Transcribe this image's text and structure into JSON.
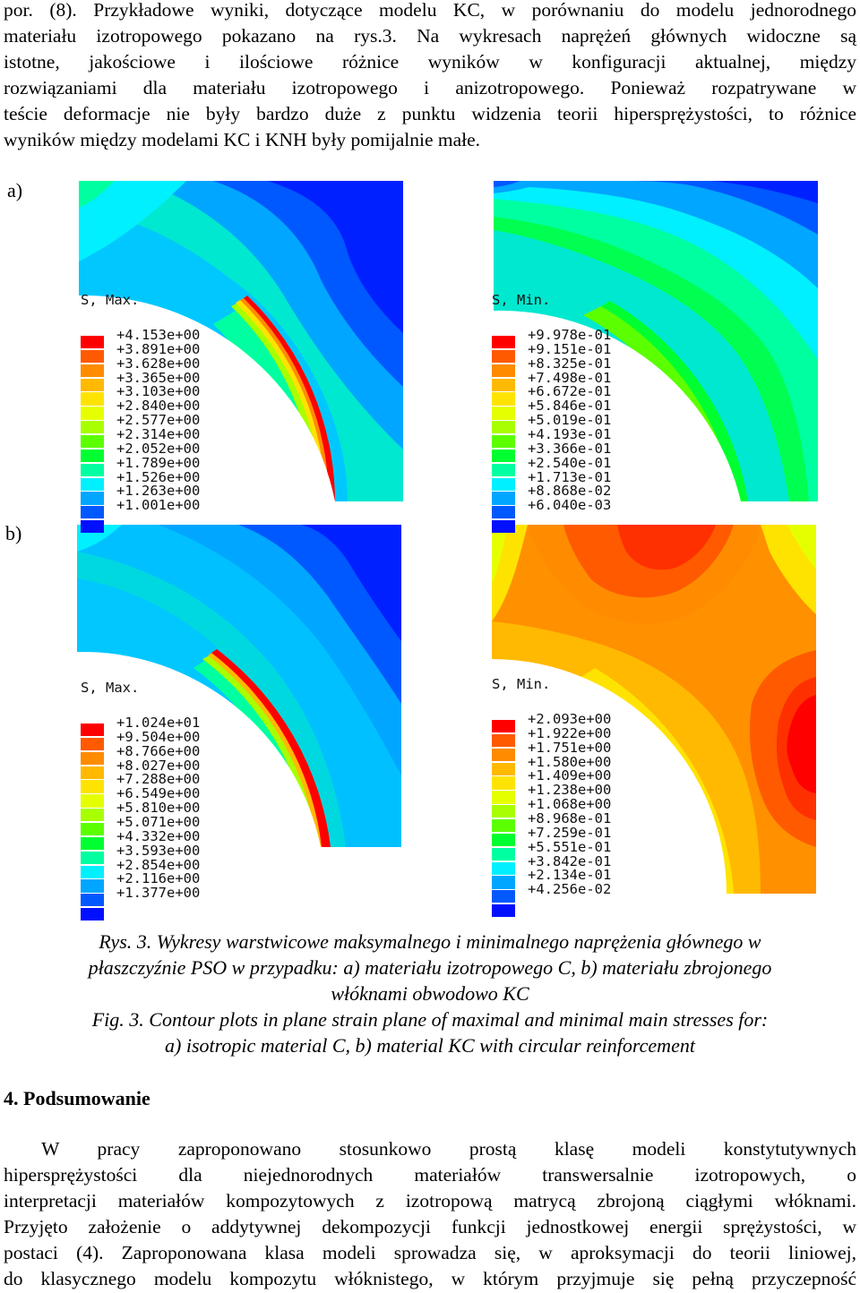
{
  "intro_lines": [
    "por. (8). Przykładowe wyniki, dotyczące modelu KC, w porównaniu do modelu jednorodnego",
    "materiału izotropowego pokazano na rys.3. Na wykresach naprężeń głównych widoczne są",
    "istotne, jakościowe i ilościowe różnice wyników w konfiguracji aktualnej, między",
    "rozwiązaniami dla materiału izotropowego i anizotropowego. Ponieważ rozpatrywane w",
    "teście deformacje nie były bardzo duże z punktu widzenia teorii hipersprężystości, to różnice",
    "wyników między modelami KC i KNH były pomijalnie małe."
  ],
  "label_a": "a)",
  "label_b": "b)",
  "palette": [
    "#ff0000",
    "#ff5a00",
    "#ff8c00",
    "#ffb900",
    "#ffe300",
    "#e6ff00",
    "#a8ff00",
    "#5cff00",
    "#00ff30",
    "#00ffa0",
    "#00f0ff",
    "#00a6ff",
    "#0058ff",
    "#0010ff"
  ],
  "plots": [
    {
      "title": "S, Max.",
      "values": [
        "+4.153e+00",
        "+3.891e+00",
        "+3.628e+00",
        "+3.365e+00",
        "+3.103e+00",
        "+2.840e+00",
        "+2.577e+00",
        "+2.314e+00",
        "+2.052e+00",
        "+1.789e+00",
        "+1.526e+00",
        "+1.263e+00",
        "+1.001e+00"
      ]
    },
    {
      "title": "S, Min.",
      "values": [
        "+9.978e-01",
        "+9.151e-01",
        "+8.325e-01",
        "+7.498e-01",
        "+6.672e-01",
        "+5.846e-01",
        "+5.019e-01",
        "+4.193e-01",
        "+3.366e-01",
        "+2.540e-01",
        "+1.713e-01",
        "+8.868e-02",
        "+6.040e-03"
      ]
    },
    {
      "title": "S, Max.",
      "values": [
        "+1.024e+01",
        "+9.504e+00",
        "+8.766e+00",
        "+8.027e+00",
        "+7.288e+00",
        "+6.549e+00",
        "+5.810e+00",
        "+5.071e+00",
        "+4.332e+00",
        "+3.593e+00",
        "+2.854e+00",
        "+2.116e+00",
        "+1.377e+00"
      ]
    },
    {
      "title": "S, Min.",
      "values": [
        "+2.093e+00",
        "+1.922e+00",
        "+1.751e+00",
        "+1.580e+00",
        "+1.409e+00",
        "+1.238e+00",
        "+1.068e+00",
        "+8.968e-01",
        "+7.259e-01",
        "+5.551e-01",
        "+3.842e-01",
        "+2.134e-01",
        "+4.256e-02"
      ]
    }
  ],
  "caption_pl_lines": [
    "Rys. 3. Wykresy warstwicowe maksymalnego i minimalnego naprężenia głównego w",
    "płaszczyźnie PSO  w przypadku: a) materiału izotropowego C, b) materiału zbrojonego",
    "włóknami obwodowo KC"
  ],
  "caption_en_lines": [
    "Fig. 3. Contour plots in plane strain plane of maximal and minimal main stresses for:",
    "a) isotropic material C, b) material KC  with circular reinforcement"
  ],
  "section_heading": "4. Podsumowanie",
  "summary_lines": [
    "    W    pracy    zaproponowano    stosunkowo    prostą    klasę    modeli    konstytutywnych",
    "hipersprężystości dla niejednorodnych materiałów transwersalnie izotropowych, o",
    "interpretacji materiałów kompozytowych z izotropową matrycą zbrojoną ciągłymi włóknami.",
    "Przyjęto założenie o addytywnej dekompozycji funkcji jednostkowej energii sprężystości, w",
    "postaci (4). Zaproponowana klasa modeli sprowadza się, w aproksymacji do teorii liniowej,",
    "do klasycznego modelu kompozytu włóknistego, w którym przyjmuje się pełną przyczepność"
  ]
}
